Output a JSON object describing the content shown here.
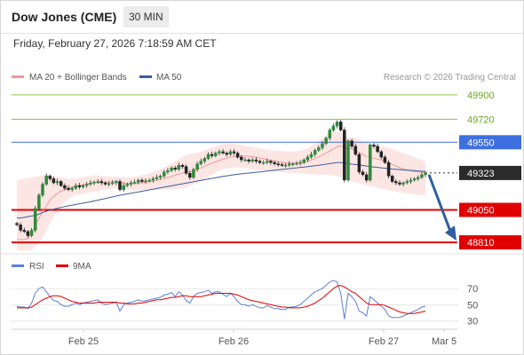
{
  "header": {
    "title": "Dow Jones (CME)",
    "timeframe": "30 MIN",
    "datetime": "Friday, February 27, 2026 7:18:59 AM CET"
  },
  "chart_data": [
    {
      "type": "candlestick",
      "panel": "price",
      "title": "Dow Jones (CME)",
      "legend": [
        {
          "label": "MA 20 + Bollinger Bands",
          "color": "#f29a95"
        },
        {
          "label": "MA 50",
          "color": "#3a5d9c"
        }
      ],
      "credit": "Research © 2026 Trading Central",
      "ylim": [
        48745,
        49965
      ],
      "x_ticks": [
        "Feb 25",
        "Feb 26",
        "Feb 27",
        "Mar 5"
      ],
      "levels": [
        {
          "label": "49900",
          "value": 49900,
          "kind": "target",
          "color": "#8bc34a"
        },
        {
          "label": "49720",
          "value": 49720,
          "kind": "target",
          "color": "#8bc34a"
        },
        {
          "label": "49550",
          "value": 49550,
          "kind": "pivot",
          "color": "#3d6fe0"
        },
        {
          "label": "49323",
          "value": 49323,
          "kind": "last",
          "color": "#2b2b2b"
        },
        {
          "label": "49050",
          "value": 49050,
          "kind": "support",
          "color": "#e00000"
        },
        {
          "label": "48810",
          "value": 48810,
          "kind": "support",
          "color": "#e00000"
        }
      ],
      "arrow": {
        "direction": "down",
        "from_value": 49323,
        "to_value": 48810,
        "color": "#2f5f9e"
      },
      "closes": [
        48940,
        48900,
        48890,
        48860,
        48900,
        49060,
        49160,
        49240,
        49300,
        49280,
        49250,
        49260,
        49230,
        49210,
        49200,
        49210,
        49230,
        49220,
        49230,
        49240,
        49250,
        49255,
        49260,
        49250,
        49240,
        49245,
        49250,
        49260,
        49200,
        49230,
        49240,
        49250,
        49255,
        49270,
        49260,
        49265,
        49270,
        49280,
        49290,
        49300,
        49330,
        49340,
        49360,
        49350,
        49380,
        49370,
        49320,
        49290,
        49350,
        49390,
        49410,
        49430,
        49460,
        49450,
        49470,
        49480,
        49470,
        49460,
        49480,
        49470,
        49440,
        49420,
        49420,
        49410,
        49420,
        49410,
        49400,
        49400,
        49410,
        49400,
        49390,
        49385,
        49380,
        49380,
        49390,
        49390,
        49395,
        49400,
        49420,
        49440,
        49460,
        49490,
        49510,
        49540,
        49580,
        49640,
        49670,
        49700,
        49640,
        49270,
        49560,
        49520,
        49460,
        49330,
        49310,
        49270,
        49530,
        49520,
        49480,
        49440,
        49400,
        49300,
        49260,
        49250,
        49240,
        49250,
        49260,
        49270,
        49280,
        49290,
        49310,
        49323
      ],
      "ma20": [
        48830,
        48830,
        48830,
        48840,
        48880,
        48930,
        48990,
        49040,
        49080,
        49120,
        49150,
        49170,
        49190,
        49200,
        49210,
        49220,
        49225,
        49230,
        49235,
        49240,
        49245,
        49250,
        49250,
        49255,
        49255,
        49255,
        49260,
        49260,
        49255,
        49250,
        49245,
        49245,
        49245,
        49248,
        49250,
        49255,
        49258,
        49262,
        49268,
        49275,
        49282,
        49290,
        49298,
        49306,
        49315,
        49322,
        49328,
        49332,
        49340,
        49350,
        49360,
        49372,
        49385,
        49395,
        49405,
        49415,
        49425,
        49432,
        49438,
        49444,
        49447,
        49448,
        49448,
        49446,
        49443,
        49438,
        49433,
        49428,
        49422,
        49416,
        49410,
        49405,
        49400,
        49397,
        49395,
        49395,
        49396,
        49398,
        49403,
        49410,
        49420,
        49430,
        49442,
        49455,
        49470,
        49485,
        49500,
        49515,
        49525,
        49510,
        49505,
        49498,
        49488,
        49474,
        49460,
        49445,
        49438,
        49432,
        49425,
        49418,
        49410,
        49398,
        49386,
        49374,
        49362,
        49352,
        49344,
        49338,
        49333,
        49330,
        49328,
        49328
      ],
      "bb_upper": [
        49270,
        49275,
        49280,
        49285,
        49290,
        49295,
        49300,
        49305,
        49310,
        49310,
        49300,
        49295,
        49290,
        49285,
        49280,
        49280,
        49282,
        49285,
        49290,
        49295,
        49300,
        49305,
        49305,
        49300,
        49300,
        49298,
        49296,
        49295,
        49292,
        49290,
        49290,
        49292,
        49296,
        49300,
        49305,
        49312,
        49320,
        49330,
        49340,
        49350,
        49365,
        49380,
        49395,
        49410,
        49425,
        49440,
        49455,
        49462,
        49468,
        49474,
        49480,
        49490,
        49500,
        49510,
        49520,
        49530,
        49535,
        49540,
        49540,
        49538,
        49535,
        49530,
        49525,
        49520,
        49515,
        49510,
        49505,
        49500,
        49495,
        49490,
        49488,
        49486,
        49484,
        49482,
        49482,
        49482,
        49484,
        49488,
        49495,
        49505,
        49520,
        49540,
        49560,
        49580,
        49600,
        49620,
        49630,
        49630,
        49620,
        49600,
        49590,
        49585,
        49580,
        49570,
        49560,
        49550,
        49540,
        49530,
        49525,
        49520,
        49515,
        49510,
        49500,
        49490,
        49480,
        49470,
        49460,
        49450,
        49440,
        49430,
        49420,
        49410
      ],
      "bb_lower": [
        48750,
        48748,
        48748,
        48750,
        48760,
        48780,
        48810,
        48850,
        48900,
        48950,
        49000,
        49040,
        49080,
        49110,
        49130,
        49150,
        49160,
        49165,
        49170,
        49175,
        49180,
        49185,
        49190,
        49195,
        49200,
        49205,
        49208,
        49210,
        49210,
        49205,
        49200,
        49198,
        49195,
        49195,
        49196,
        49198,
        49200,
        49200,
        49200,
        49200,
        49200,
        49200,
        49200,
        49202,
        49205,
        49210,
        49215,
        49225,
        49235,
        49250,
        49265,
        49280,
        49295,
        49310,
        49325,
        49340,
        49350,
        49355,
        49360,
        49362,
        49362,
        49360,
        49358,
        49355,
        49352,
        49348,
        49345,
        49342,
        49338,
        49335,
        49332,
        49330,
        49328,
        49326,
        49324,
        49322,
        49320,
        49320,
        49318,
        49316,
        49314,
        49312,
        49310,
        49310,
        49310,
        49310,
        49308,
        49300,
        49290,
        49280,
        49270,
        49262,
        49255,
        49248,
        49240,
        49232,
        49226,
        49220,
        49214,
        49208,
        49202,
        49196,
        49190,
        49185,
        49180,
        49176,
        49172,
        49168,
        49165,
        49162,
        49160,
        49160
      ],
      "ma50": [
        48990,
        48990,
        48995,
        49000,
        49005,
        49010,
        49020,
        49030,
        49040,
        49048,
        49055,
        49062,
        49068,
        49074,
        49080,
        49085,
        49090,
        49095,
        49100,
        49105,
        49110,
        49116,
        49122,
        49128,
        49134,
        49140,
        49146,
        49152,
        49158,
        49163,
        49168,
        49173,
        49178,
        49183,
        49188,
        49193,
        49198,
        49203,
        49208,
        49213,
        49218,
        49223,
        49228,
        49233,
        49238,
        49243,
        49248,
        49253,
        49258,
        49263,
        49268,
        49273,
        49278,
        49283,
        49288,
        49293,
        49298,
        49302,
        49306,
        49310,
        49313,
        49316,
        49319,
        49322,
        49325,
        49328,
        49331,
        49334,
        49337,
        49340,
        49343,
        49346,
        49349,
        49352,
        49355,
        49358,
        49361,
        49364,
        49367,
        49370,
        49373,
        49376,
        49380,
        49384,
        49388,
        49392,
        49396,
        49400,
        49400,
        49395,
        49392,
        49388,
        49385,
        49382,
        49378,
        49374,
        49370,
        49367,
        49364,
        49361,
        49358,
        49355,
        49352,
        49350,
        49348,
        49346,
        49344,
        49342,
        49340,
        49338,
        49336,
        49335
      ]
    },
    {
      "type": "line",
      "panel": "rsi",
      "legend": [
        {
          "label": "RSI",
          "color": "#5b7fd6"
        },
        {
          "label": "9MA",
          "color": "#e00000"
        }
      ],
      "ylim": [
        25,
        80
      ],
      "y_ticks": [
        "70",
        "50",
        "30"
      ],
      "series": [
        {
          "name": "RSI",
          "values": [
            48,
            47,
            47,
            45,
            52,
            64,
            70,
            72,
            66,
            60,
            55,
            54,
            50,
            48,
            48,
            50,
            52,
            50,
            52,
            53,
            54,
            55,
            56,
            52,
            50,
            51,
            52,
            53,
            42,
            50,
            52,
            53,
            54,
            56,
            54,
            55,
            56,
            57,
            58,
            59,
            62,
            63,
            65,
            60,
            66,
            62,
            55,
            52,
            60,
            64,
            65,
            66,
            68,
            64,
            66,
            66,
            63,
            60,
            64,
            60,
            54,
            50,
            50,
            48,
            50,
            48,
            46,
            46,
            49,
            47,
            45,
            45,
            44,
            44,
            47,
            47,
            48,
            50,
            54,
            58,
            62,
            66,
            68,
            70,
            74,
            78,
            80,
            78,
            64,
            32,
            64,
            60,
            54,
            42,
            40,
            36,
            60,
            56,
            52,
            48,
            44,
            36,
            34,
            34,
            34,
            36,
            38,
            40,
            42,
            44,
            47,
            48
          ]
        },
        {
          "name": "9MA",
          "values": [
            46,
            46,
            46,
            46,
            47,
            50,
            53,
            56,
            58,
            60,
            61,
            61,
            60,
            58,
            56,
            54,
            53,
            52,
            52,
            52,
            52,
            52,
            53,
            53,
            53,
            53,
            53,
            53,
            52,
            52,
            51,
            51,
            51,
            52,
            52,
            53,
            54,
            55,
            56,
            56,
            57,
            58,
            59,
            59,
            60,
            61,
            61,
            60,
            60,
            60,
            60,
            61,
            62,
            63,
            64,
            64,
            64,
            64,
            64,
            63,
            62,
            60,
            58,
            56,
            55,
            54,
            53,
            52,
            51,
            50,
            49,
            48,
            47,
            47,
            46,
            46,
            46,
            46,
            47,
            48,
            50,
            52,
            55,
            58,
            62,
            66,
            70,
            73,
            74,
            72,
            69,
            66,
            64,
            60,
            56,
            52,
            50,
            50,
            50,
            50,
            49,
            47,
            45,
            43,
            41,
            40,
            39,
            39,
            39,
            40,
            41,
            42
          ]
        }
      ]
    }
  ]
}
